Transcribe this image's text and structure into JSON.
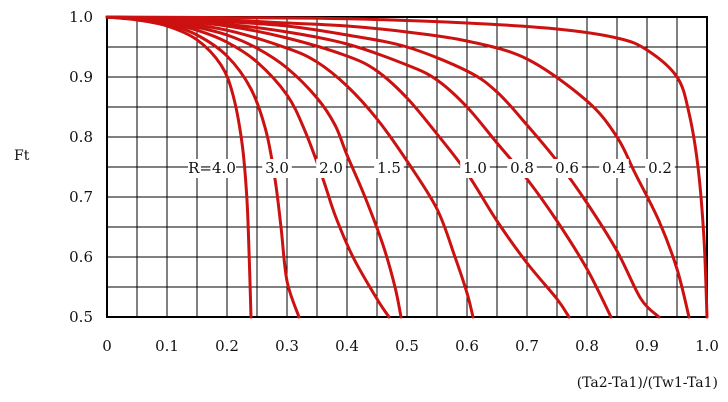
{
  "chart_data": {
    "type": "line",
    "title": "",
    "xlabel": "(Ta2-Ta1)/(Tw1-Ta1)",
    "ylabel": "Ft",
    "xlim": [
      0,
      1.0
    ],
    "ylim": [
      0.5,
      1.0
    ],
    "grid": true,
    "curve_color": "#cc1111",
    "x_ticks": [
      "0",
      "0.1",
      "0.2",
      "0.3",
      "0.4",
      "0.5",
      "0.6",
      "0.7",
      "0.8",
      "0.9",
      "1.0"
    ],
    "y_ticks": [
      "1.0",
      "0.9",
      "0.8",
      "0.7",
      "0.6",
      "0.5"
    ],
    "series": [
      {
        "name": "R=4.0",
        "points": [
          [
            0,
            1.0
          ],
          [
            0.05,
            0.995
          ],
          [
            0.1,
            0.985
          ],
          [
            0.15,
            0.962
          ],
          [
            0.19,
            0.92
          ],
          [
            0.21,
            0.87
          ],
          [
            0.225,
            0.79
          ],
          [
            0.233,
            0.7
          ],
          [
            0.237,
            0.6
          ],
          [
            0.24,
            0.5
          ]
        ]
      },
      {
        "name": "3.0",
        "points": [
          [
            0,
            1.0
          ],
          [
            0.05,
            0.996
          ],
          [
            0.1,
            0.988
          ],
          [
            0.15,
            0.97
          ],
          [
            0.2,
            0.935
          ],
          [
            0.24,
            0.88
          ],
          [
            0.265,
            0.81
          ],
          [
            0.28,
            0.73
          ],
          [
            0.29,
            0.65
          ],
          [
            0.3,
            0.56
          ],
          [
            0.32,
            0.5
          ]
        ]
      },
      {
        "name": "2.0",
        "points": [
          [
            0,
            1.0
          ],
          [
            0.05,
            0.997
          ],
          [
            0.1,
            0.99
          ],
          [
            0.15,
            0.978
          ],
          [
            0.2,
            0.958
          ],
          [
            0.25,
            0.925
          ],
          [
            0.3,
            0.87
          ],
          [
            0.33,
            0.81
          ],
          [
            0.36,
            0.73
          ],
          [
            0.38,
            0.67
          ],
          [
            0.41,
            0.6
          ],
          [
            0.45,
            0.53
          ],
          [
            0.47,
            0.5
          ]
        ]
      },
      {
        "name": "1.5",
        "points": [
          [
            0,
            1.0
          ],
          [
            0.05,
            0.997
          ],
          [
            0.1,
            0.992
          ],
          [
            0.15,
            0.983
          ],
          [
            0.2,
            0.97
          ],
          [
            0.25,
            0.948
          ],
          [
            0.3,
            0.915
          ],
          [
            0.35,
            0.865
          ],
          [
            0.38,
            0.82
          ],
          [
            0.4,
            0.77
          ],
          [
            0.43,
            0.7
          ],
          [
            0.46,
            0.62
          ],
          [
            0.48,
            0.55
          ],
          [
            0.49,
            0.5
          ]
        ]
      },
      {
        "name": "1.0",
        "points": [
          [
            0,
            1.0
          ],
          [
            0.1,
            0.993
          ],
          [
            0.2,
            0.978
          ],
          [
            0.3,
            0.948
          ],
          [
            0.35,
            0.925
          ],
          [
            0.4,
            0.885
          ],
          [
            0.45,
            0.83
          ],
          [
            0.5,
            0.76
          ],
          [
            0.55,
            0.68
          ],
          [
            0.58,
            0.6
          ],
          [
            0.6,
            0.54
          ],
          [
            0.61,
            0.5
          ]
        ]
      },
      {
        "name": "0.8",
        "points": [
          [
            0,
            1.0
          ],
          [
            0.1,
            0.995
          ],
          [
            0.2,
            0.985
          ],
          [
            0.3,
            0.965
          ],
          [
            0.4,
            0.935
          ],
          [
            0.45,
            0.91
          ],
          [
            0.5,
            0.865
          ],
          [
            0.55,
            0.805
          ],
          [
            0.6,
            0.74
          ],
          [
            0.65,
            0.66
          ],
          [
            0.7,
            0.59
          ],
          [
            0.75,
            0.53
          ],
          [
            0.77,
            0.5
          ]
        ]
      },
      {
        "name": "0.6",
        "points": [
          [
            0,
            1.0
          ],
          [
            0.1,
            0.996
          ],
          [
            0.2,
            0.988
          ],
          [
            0.3,
            0.975
          ],
          [
            0.4,
            0.955
          ],
          [
            0.5,
            0.92
          ],
          [
            0.55,
            0.895
          ],
          [
            0.6,
            0.85
          ],
          [
            0.65,
            0.79
          ],
          [
            0.7,
            0.73
          ],
          [
            0.75,
            0.66
          ],
          [
            0.8,
            0.58
          ],
          [
            0.84,
            0.5
          ]
        ]
      },
      {
        "name": "0.4",
        "points": [
          [
            0,
            1.0
          ],
          [
            0.1,
            0.997
          ],
          [
            0.2,
            0.992
          ],
          [
            0.3,
            0.985
          ],
          [
            0.4,
            0.97
          ],
          [
            0.5,
            0.95
          ],
          [
            0.6,
            0.91
          ],
          [
            0.65,
            0.875
          ],
          [
            0.7,
            0.82
          ],
          [
            0.75,
            0.76
          ],
          [
            0.8,
            0.69
          ],
          [
            0.85,
            0.61
          ],
          [
            0.89,
            0.53
          ],
          [
            0.92,
            0.5
          ]
        ]
      },
      {
        "name": "0.2",
        "points": [
          [
            0,
            1.0
          ],
          [
            0.1,
            0.998
          ],
          [
            0.2,
            0.995
          ],
          [
            0.3,
            0.99
          ],
          [
            0.4,
            0.985
          ],
          [
            0.5,
            0.975
          ],
          [
            0.6,
            0.96
          ],
          [
            0.7,
            0.93
          ],
          [
            0.8,
            0.86
          ],
          [
            0.85,
            0.8
          ],
          [
            0.88,
            0.74
          ],
          [
            0.92,
            0.66
          ],
          [
            0.95,
            0.58
          ],
          [
            0.97,
            0.5
          ]
        ]
      },
      {
        "name": "",
        "points": [
          [
            0,
            1.0
          ],
          [
            0.2,
            0.999
          ],
          [
            0.4,
            0.997
          ],
          [
            0.6,
            0.99
          ],
          [
            0.75,
            0.98
          ],
          [
            0.85,
            0.965
          ],
          [
            0.9,
            0.945
          ],
          [
            0.95,
            0.9
          ],
          [
            0.97,
            0.84
          ],
          [
            0.985,
            0.75
          ],
          [
            0.995,
            0.63
          ],
          [
            1.0,
            0.5
          ]
        ]
      }
    ]
  }
}
